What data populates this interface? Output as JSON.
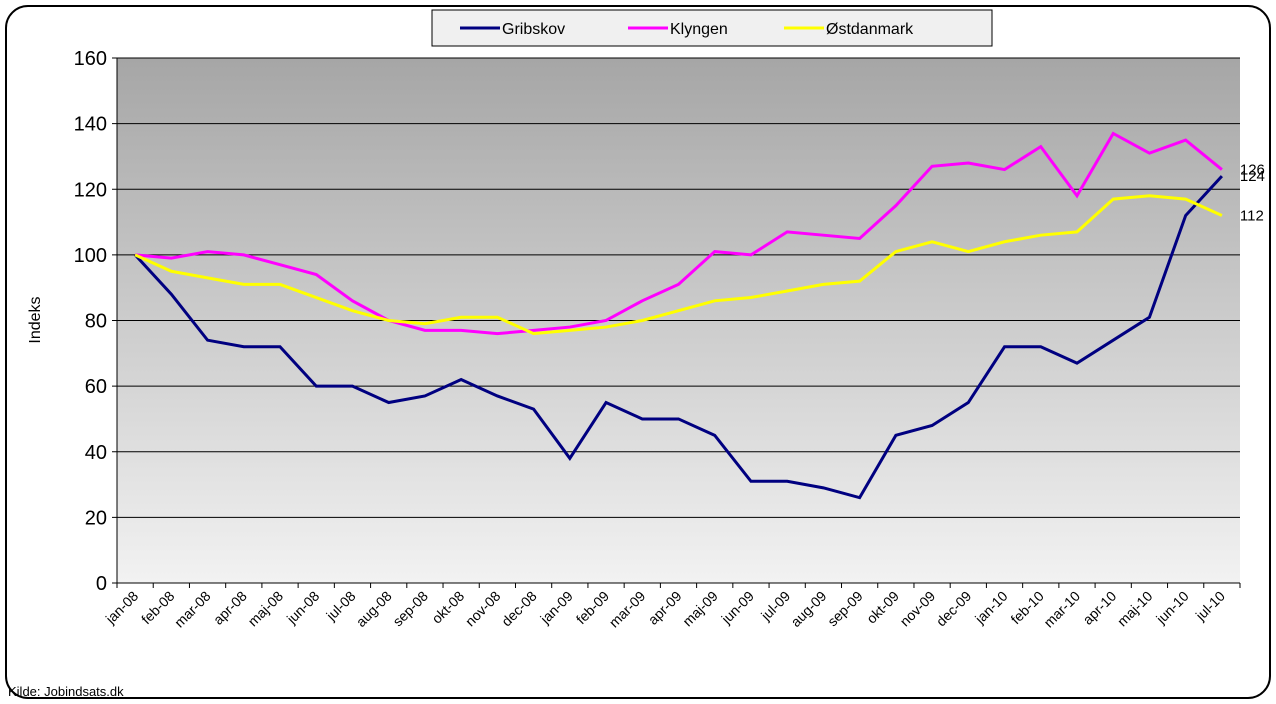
{
  "chart_data": {
    "type": "line",
    "y_label": "Indeks",
    "source": "Kilde: Jobindsats.dk",
    "categories": [
      "jan-08",
      "feb-08",
      "mar-08",
      "apr-08",
      "maj-08",
      "jun-08",
      "jul-08",
      "aug-08",
      "sep-08",
      "okt-08",
      "nov-08",
      "dec-08",
      "jan-09",
      "feb-09",
      "mar-09",
      "apr-09",
      "maj-09",
      "jun-09",
      "jul-09",
      "aug-09",
      "sep-09",
      "okt-09",
      "nov-09",
      "dec-09",
      "jan-10",
      "feb-10",
      "mar-10",
      "apr-10",
      "maj-10",
      "jun-10",
      "jul-10"
    ],
    "series": [
      {
        "name": "Gribskov",
        "color": "#000080",
        "values": [
          100,
          88,
          74,
          72,
          72,
          60,
          60,
          55,
          57,
          62,
          57,
          53,
          38,
          55,
          50,
          50,
          45,
          31,
          31,
          29,
          26,
          45,
          48,
          55,
          72,
          72,
          67,
          74,
          81,
          112,
          124
        ]
      },
      {
        "name": "Klyngen",
        "color": "#ff00ff",
        "values": [
          100,
          99,
          101,
          100,
          97,
          94,
          86,
          80,
          77,
          77,
          76,
          77,
          78,
          80,
          86,
          91,
          101,
          100,
          107,
          106,
          105,
          115,
          127,
          128,
          126,
          133,
          118,
          137,
          131,
          135,
          126
        ]
      },
      {
        "name": "Østdanmark",
        "color": "#ffff00",
        "values": [
          100,
          95,
          93,
          91,
          91,
          87,
          83,
          80,
          79,
          81,
          81,
          76,
          77,
          78,
          80,
          83,
          86,
          87,
          89,
          91,
          92,
          101,
          104,
          101,
          104,
          106,
          107,
          117,
          118,
          117,
          112
        ]
      }
    ],
    "ylim": [
      0,
      160
    ],
    "yticks": [
      0,
      20,
      40,
      60,
      80,
      100,
      120,
      140,
      160
    ],
    "grid": true
  }
}
